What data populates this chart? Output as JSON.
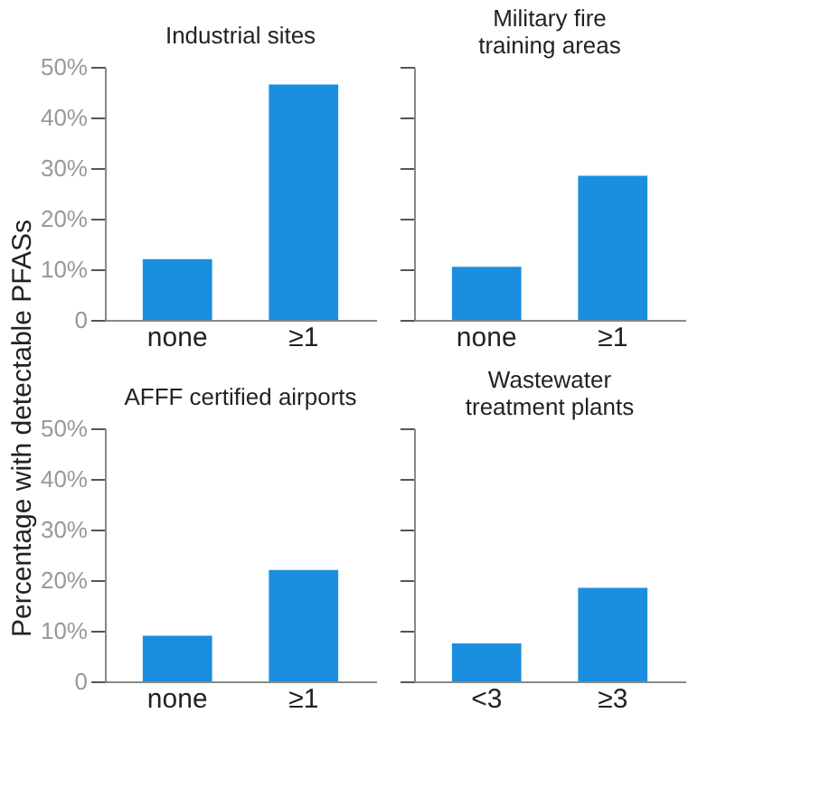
{
  "chart_data": [
    {
      "type": "bar",
      "title": "Industrial sites",
      "ylabel": "Percentage with detectable PFASs",
      "categories": [
        "none",
        "≥1"
      ],
      "values": [
        12,
        46.5
      ],
      "color": "#1a8fe0",
      "ylim": [
        0,
        50
      ],
      "yticks": [
        0,
        {
          "value": 10,
          "label": "10%"
        },
        {
          "value": 20,
          "label": "20%"
        },
        {
          "value": 30,
          "label": "30%"
        },
        {
          "value": 40,
          "label": "40%"
        },
        {
          "value": 50,
          "label": "50%"
        }
      ],
      "grid": false
    },
    {
      "type": "bar",
      "title": "Military fire\ntraining areas",
      "categories": [
        "none",
        "≥1"
      ],
      "values": [
        10.5,
        28.5
      ],
      "color": "#1a8fe0",
      "ylim": [
        0,
        50
      ],
      "yticks": [
        {
          "value": 0,
          "label": null
        },
        {
          "value": 10,
          "label": null
        },
        {
          "value": 20,
          "label": null
        },
        {
          "value": 30,
          "label": null
        },
        {
          "value": 40,
          "label": null
        },
        {
          "value": 50,
          "label": null
        }
      ],
      "tick_labels": "x",
      "grid": false
    },
    {
      "type": "bar",
      "title": "AFFF certified airports",
      "categories": [
        "none",
        "≥1"
      ],
      "values": [
        9,
        22
      ],
      "color": "#1a8fe0",
      "ylim": [
        0,
        50
      ],
      "yticks": [
        0,
        {
          "value": 10,
          "label": "10%"
        },
        {
          "value": 20,
          "label": "20%"
        },
        {
          "value": 30,
          "label": "30%"
        },
        {
          "value": 40,
          "label": "40%"
        },
        {
          "value": 50,
          "label": "50%"
        }
      ],
      "grid": false
    },
    {
      "type": "bar",
      "title": "Wastewater\ntreatment plants",
      "categories": [
        "<3",
        "≥3"
      ],
      "values": [
        7.5,
        18.5
      ],
      "color": "#1a8fe0",
      "ylim": [
        0,
        50
      ],
      "yticks": [
        {
          "value": 0,
          "label": null
        },
        {
          "value": 10,
          "label": null
        },
        {
          "value": 20,
          "label": null
        },
        {
          "value": 30,
          "label": null
        },
        {
          "value": 40,
          "label": null
        },
        {
          "value": 50,
          "label": null
        }
      ],
      "tick_labels": "x",
      "grid": false
    }
  ]
}
